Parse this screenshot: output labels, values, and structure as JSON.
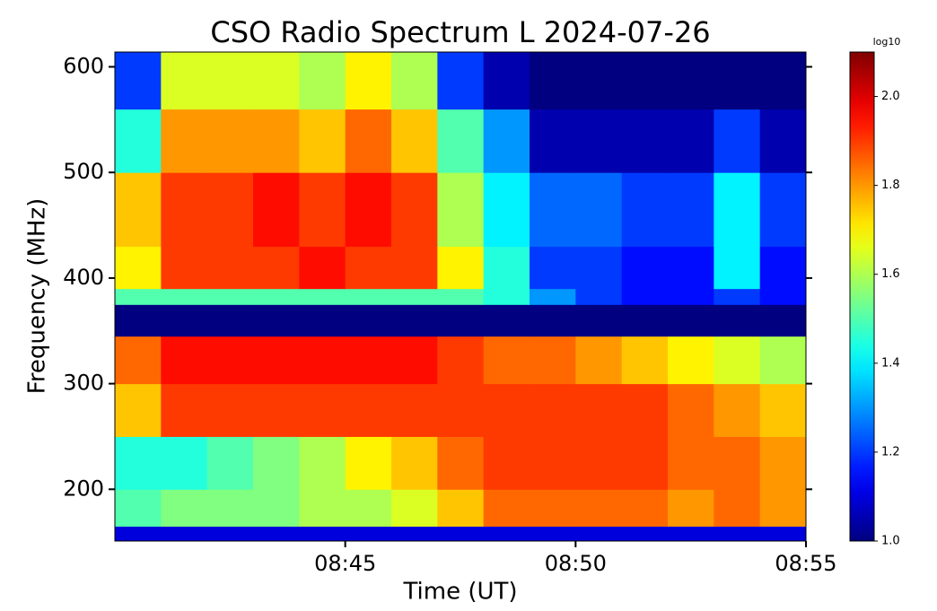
{
  "chart_data": {
    "type": "heatmap",
    "title": "CSO Radio Spectrum L 2024-07-26",
    "xlabel": "Time (UT)",
    "ylabel": "Frequency (MHz)",
    "colorbar_label": "log10",
    "colormap": "jet",
    "xlim": [
      "08:40",
      "08:55"
    ],
    "xticks": [
      "08:45",
      "08:50",
      "08:55"
    ],
    "ylim": [
      151,
      614
    ],
    "yticks": [
      200,
      300,
      400,
      500,
      600
    ],
    "clim": [
      1.0,
      2.1
    ],
    "cticks": [
      {
        "value": 1,
        "label": "1.0"
      },
      1.2,
      1.4,
      1.6,
      1.8,
      {
        "value": 2,
        "label": "2.0"
      }
    ],
    "x_bins": [
      "08:40",
      "08:41",
      "08:42",
      "08:43",
      "08:44",
      "08:45",
      "08:46",
      "08:47",
      "08:48",
      "08:49",
      "08:50",
      "08:51",
      "08:52",
      "08:53",
      "08:54",
      "08:55"
    ],
    "y_bins": [
      151,
      165,
      200,
      250,
      300,
      345,
      375,
      390,
      430,
      500,
      560,
      614
    ],
    "z": [
      [
        1.1,
        1.1,
        1.1,
        1.1,
        1.1,
        1.1,
        1.1,
        1.1,
        1.1,
        1.1,
        1.1,
        1.1,
        1.1,
        1.1,
        1.1
      ],
      [
        1.5,
        1.55,
        1.55,
        1.55,
        1.6,
        1.6,
        1.65,
        1.75,
        1.85,
        1.85,
        1.85,
        1.85,
        1.8,
        1.85,
        1.8
      ],
      [
        1.45,
        1.45,
        1.5,
        1.55,
        1.6,
        1.7,
        1.75,
        1.85,
        1.9,
        1.9,
        1.9,
        1.9,
        1.85,
        1.85,
        1.8
      ],
      [
        1.75,
        1.9,
        1.9,
        1.9,
        1.9,
        1.9,
        1.9,
        1.9,
        1.9,
        1.9,
        1.9,
        1.9,
        1.85,
        1.8,
        1.75
      ],
      [
        1.85,
        1.95,
        1.95,
        1.95,
        1.95,
        1.95,
        1.95,
        1.9,
        1.85,
        1.85,
        1.8,
        1.75,
        1.7,
        1.65,
        1.6
      ],
      [
        1.0,
        1.0,
        1.0,
        1.0,
        1.0,
        1.0,
        1.0,
        1.0,
        1.0,
        1.0,
        1.0,
        1.0,
        1.0,
        1.0,
        1.0
      ],
      [
        1.5,
        1.5,
        1.5,
        1.5,
        1.5,
        1.5,
        1.5,
        1.5,
        1.45,
        1.3,
        1.2,
        1.15,
        1.15,
        1.2,
        1.15
      ],
      [
        1.7,
        1.9,
        1.9,
        1.9,
        1.95,
        1.9,
        1.9,
        1.7,
        1.45,
        1.2,
        1.2,
        1.15,
        1.15,
        1.4,
        1.15
      ],
      [
        1.75,
        1.9,
        1.9,
        1.95,
        1.9,
        1.95,
        1.9,
        1.6,
        1.4,
        1.25,
        1.25,
        1.2,
        1.2,
        1.4,
        1.2
      ],
      [
        1.45,
        1.8,
        1.8,
        1.8,
        1.75,
        1.85,
        1.75,
        1.5,
        1.3,
        1.05,
        1.05,
        1.05,
        1.05,
        1.2,
        1.05
      ],
      [
        1.2,
        1.65,
        1.65,
        1.65,
        1.6,
        1.7,
        1.6,
        1.2,
        1.05,
        1.0,
        1.0,
        1.0,
        1.0,
        1.0,
        1.0
      ]
    ]
  }
}
